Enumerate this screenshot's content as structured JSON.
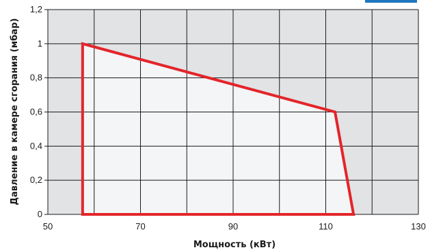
{
  "chart_data": {
    "type": "area",
    "title": "",
    "xlabel": "Мощность (кВт)",
    "ylabel": "Давление в камере сгорания (мбар)",
    "xlim": [
      50,
      130
    ],
    "ylim": [
      0,
      1.2
    ],
    "x_ticks": [
      50,
      70,
      90,
      110,
      130
    ],
    "x_tick_labels": [
      "50",
      "70",
      "90",
      "110",
      "130"
    ],
    "x_grid": [
      50,
      60,
      70,
      80,
      90,
      100,
      110,
      120,
      130
    ],
    "y_ticks": [
      0,
      0.2,
      0.4,
      0.6,
      0.8,
      1,
      1.2
    ],
    "y_tick_labels": [
      "0",
      "0,2",
      "0,4",
      "0,6",
      "0,8",
      "1",
      "1,2"
    ],
    "grid": true,
    "series": [
      {
        "points": [
          {
            "x": 57.5,
            "y": 0
          },
          {
            "x": 57.5,
            "y": 1.0
          },
          {
            "x": 112,
            "y": 0.6
          },
          {
            "x": 116,
            "y": 0
          }
        ]
      }
    ],
    "colors": {
      "plot_background": "#e2e3e5",
      "area_fill": "#f4f5f7",
      "area_stroke": "#e3252a",
      "grid_line": "#1a1a1a",
      "corner_accent": "#1f78bf"
    }
  }
}
